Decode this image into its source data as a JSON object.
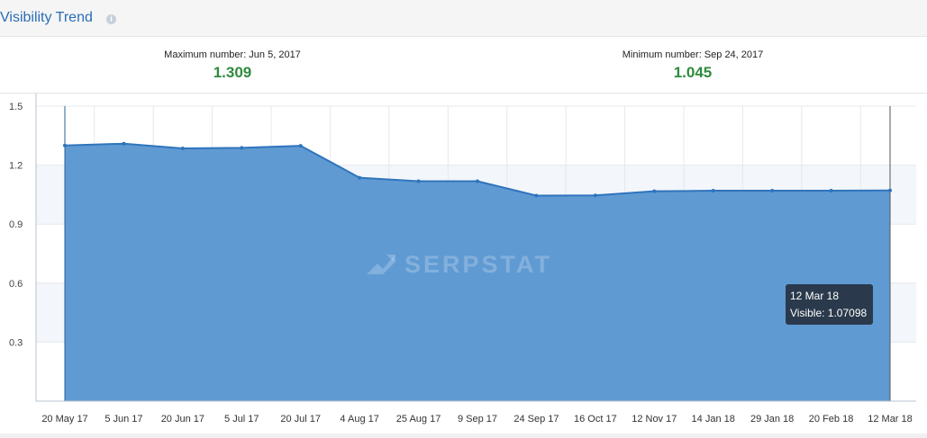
{
  "header": {
    "title": "Visibility Trend",
    "info_icon": "info-icon"
  },
  "stats": {
    "max_label": "Maximum number: Jun 5, 2017",
    "max_value": "1.309",
    "min_label": "Minimum number: Sep 24, 2017",
    "min_value": "1.045"
  },
  "colors": {
    "area_fill": "#5b97d1",
    "line": "#2f74bd",
    "value_green": "#2e8b3d",
    "title_blue": "#2a6db5",
    "tooltip_bg": "#2a3a4c"
  },
  "watermark": {
    "text": "SERPSTAT"
  },
  "tooltip": {
    "date": "12 Mar 18",
    "value_text": "Visible: 1.07098"
  },
  "chart_data": {
    "type": "area",
    "title": "",
    "xlabel": "",
    "ylabel": "",
    "categories": [
      "20 May 17",
      "5 Jun 17",
      "20 Jun 17",
      "5 Jul 17",
      "20 Jul 17",
      "4 Aug 17",
      "25 Aug 17",
      "9 Sep 17",
      "24 Sep 17",
      "16 Oct 17",
      "12 Nov 17",
      "14 Jan 18",
      "29 Jan 18",
      "20 Feb 18",
      "12 Mar 18"
    ],
    "y_ticks": [
      "0.3",
      "0.6",
      "0.9",
      "1.2",
      "1.5"
    ],
    "ylim": [
      0,
      1.5
    ],
    "grid": true,
    "series": [
      {
        "values": [
          1.3,
          1.309,
          1.285,
          1.288,
          1.298,
          1.136,
          1.118,
          1.118,
          1.045,
          1.046,
          1.067,
          1.07,
          1.07,
          1.07,
          1.071
        ]
      }
    ]
  }
}
